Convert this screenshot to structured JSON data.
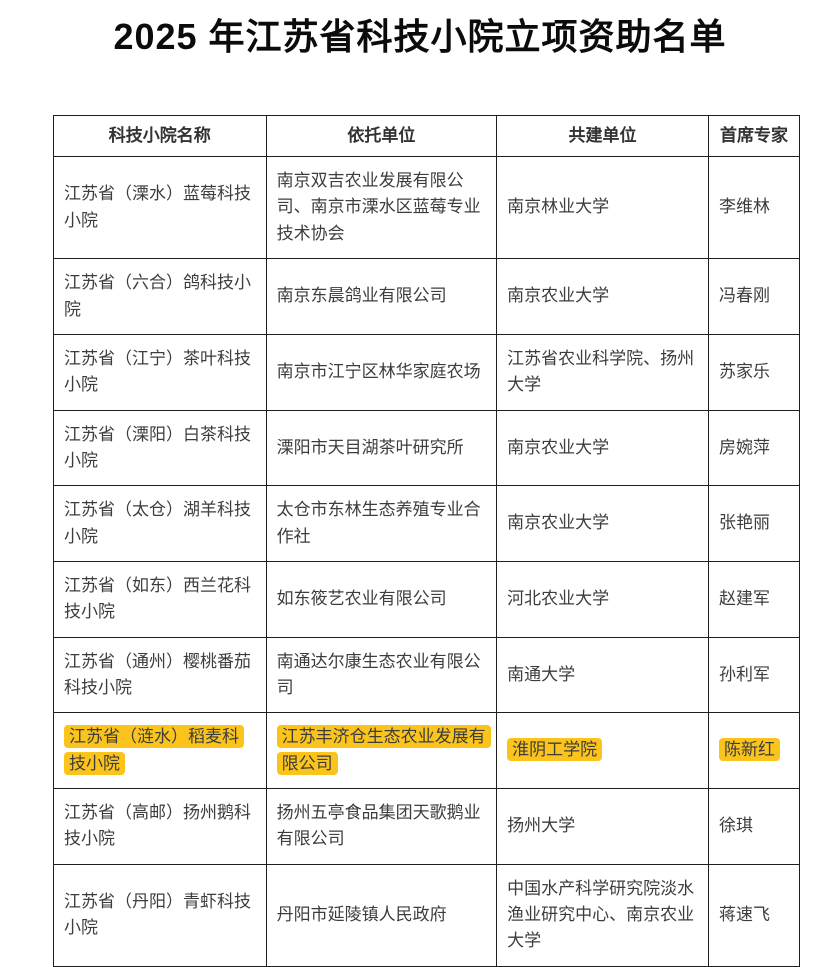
{
  "page": {
    "title": "2025 年江苏省科技小院立项资助名单"
  },
  "table": {
    "highlight_color": "#fbc41c",
    "headers": [
      "科技小院名称",
      "依托单位",
      "共建单位",
      "首席专家"
    ],
    "rows": [
      {
        "cells": [
          "江苏省（溧水）蓝莓科技小院",
          "南京双吉农业发展有限公司、南京市溧水区蓝莓专业技术协会",
          "南京林业大学",
          "李维林"
        ],
        "highlighted": false
      },
      {
        "cells": [
          "江苏省（六合）鸽科技小院",
          "南京东晨鸽业有限公司",
          "南京农业大学",
          "冯春刚"
        ],
        "highlighted": false
      },
      {
        "cells": [
          "江苏省（江宁）茶叶科技小院",
          "南京市江宁区林华家庭农场",
          "江苏省农业科学院、扬州大学",
          "苏家乐"
        ],
        "highlighted": false
      },
      {
        "cells": [
          "江苏省（溧阳）白茶科技小院",
          "溧阳市天目湖茶叶研究所",
          "南京农业大学",
          "房婉萍"
        ],
        "highlighted": false
      },
      {
        "cells": [
          "江苏省（太仓）湖羊科技小院",
          "太仓市东林生态养殖专业合作社",
          "南京农业大学",
          "张艳丽"
        ],
        "highlighted": false
      },
      {
        "cells": [
          "江苏省（如东）西兰花科技小院",
          "如东筱艺农业有限公司",
          "河北农业大学",
          "赵建军"
        ],
        "highlighted": false
      },
      {
        "cells": [
          "江苏省（通州）樱桃番茄科技小院",
          "南通达尔康生态农业有限公司",
          "南通大学",
          "孙利军"
        ],
        "highlighted": false
      },
      {
        "cells": [
          "江苏省（涟水）稻麦科技小院",
          "江苏丰济仓生态农业发展有限公司",
          "淮阴工学院",
          "陈新红"
        ],
        "highlighted": true
      },
      {
        "cells": [
          "江苏省（高邮）扬州鹅科技小院",
          "扬州五亭食品集团天歌鹅业有限公司",
          "扬州大学",
          "徐琪"
        ],
        "highlighted": false
      },
      {
        "cells": [
          "江苏省（丹阳）青虾科技小院",
          "丹阳市延陵镇人民政府",
          "中国水产科学研究院淡水渔业研究中心、南京农业大学",
          "蒋速飞"
        ],
        "highlighted": false
      }
    ]
  }
}
